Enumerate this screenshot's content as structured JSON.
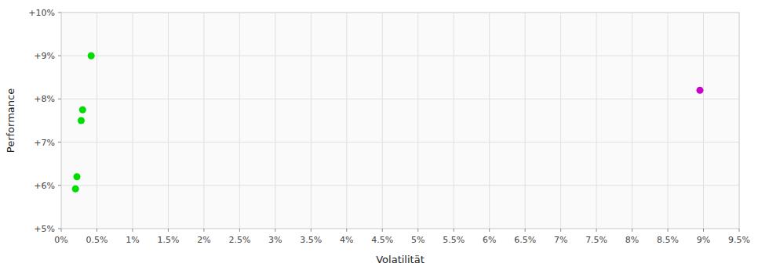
{
  "chart_data": {
    "type": "scatter",
    "xlabel": "Volatilität",
    "ylabel": "Performance",
    "xlim": [
      0,
      9.5
    ],
    "ylim": [
      5.0,
      10.0
    ],
    "xticks": [
      {
        "value": 0,
        "label": "0%"
      },
      {
        "value": 0.5,
        "label": "0.5%"
      },
      {
        "value": 1,
        "label": "1%"
      },
      {
        "value": 1.5,
        "label": "1.5%"
      },
      {
        "value": 2,
        "label": "2%"
      },
      {
        "value": 2.5,
        "label": "2.5%"
      },
      {
        "value": 3,
        "label": "3%"
      },
      {
        "value": 3.5,
        "label": "3.5%"
      },
      {
        "value": 4,
        "label": "4%"
      },
      {
        "value": 4.5,
        "label": "4.5%"
      },
      {
        "value": 5,
        "label": "5%"
      },
      {
        "value": 5.5,
        "label": "5.5%"
      },
      {
        "value": 6,
        "label": "6%"
      },
      {
        "value": 6.5,
        "label": "6.5%"
      },
      {
        "value": 7,
        "label": "7%"
      },
      {
        "value": 7.5,
        "label": "7.5%"
      },
      {
        "value": 8,
        "label": "8%"
      },
      {
        "value": 8.5,
        "label": "8.5%"
      },
      {
        "value": 9,
        "label": "9%"
      },
      {
        "value": 9.5,
        "label": "9.5%"
      }
    ],
    "yticks": [
      {
        "value": 5,
        "label": "+5%"
      },
      {
        "value": 6,
        "label": "+6%"
      },
      {
        "value": 7,
        "label": "+7%"
      },
      {
        "value": 8,
        "label": "+8%"
      },
      {
        "value": 9,
        "label": "+9%"
      },
      {
        "value": 10,
        "label": "+10%"
      }
    ],
    "grid": true,
    "series": [
      {
        "color": "#00dd00",
        "x": [
          0.42,
          0.3,
          0.28,
          0.22,
          0.2
        ],
        "values": [
          9.0,
          7.75,
          7.5,
          6.2,
          5.92
        ]
      },
      {
        "color": "#cc00cc",
        "x": [
          8.95
        ],
        "values": [
          8.2
        ]
      }
    ]
  }
}
